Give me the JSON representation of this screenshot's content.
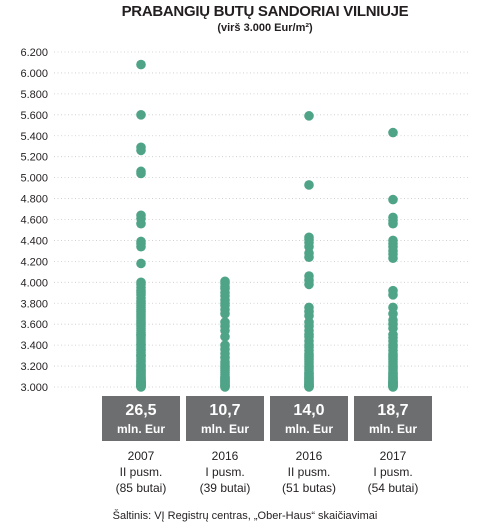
{
  "chart_data": {
    "type": "scatter",
    "title": "PRABANGIŲ BUTŲ SANDORIAI VILNIUJE",
    "subtitle": "(virš 3.000 Eur/m²)",
    "ylim": [
      3000,
      6200
    ],
    "grid": true,
    "point_color": "#4fa488",
    "box_color": "#6d6e70",
    "yticks": [
      {
        "value": 6200,
        "label": "6.200"
      },
      {
        "value": 6000,
        "label": "6.000"
      },
      {
        "value": 5800,
        "label": "5.800"
      },
      {
        "value": 5600,
        "label": "5.600"
      },
      {
        "value": 5400,
        "label": "5.400"
      },
      {
        "value": 5200,
        "label": "5.200"
      },
      {
        "value": 5000,
        "label": "5.000"
      },
      {
        "value": 4800,
        "label": "4.800"
      },
      {
        "value": 4600,
        "label": "4.600"
      },
      {
        "value": 4400,
        "label": "4.400"
      },
      {
        "value": 4200,
        "label": "4.200"
      },
      {
        "value": 4000,
        "label": "4.000"
      },
      {
        "value": 3800,
        "label": "3.800"
      },
      {
        "value": 3600,
        "label": "3.600"
      },
      {
        "value": 3400,
        "label": "3.400"
      },
      {
        "value": 3200,
        "label": "3.200"
      },
      {
        "value": 3000,
        "label": "3.000"
      }
    ],
    "categories": [
      {
        "year": "2007",
        "period": "II pusm.",
        "count": "(85 butai)",
        "total": "26,5",
        "total_unit": "mln. Eur",
        "prices": [
          6080,
          5600,
          5290,
          5260,
          5060,
          5040,
          4640,
          4610,
          4560,
          4390,
          4370,
          4340,
          4180,
          4000,
          3980,
          3950,
          3920,
          3900,
          3880,
          3850,
          3820,
          3800,
          3780,
          3760,
          3740,
          3720,
          3700,
          3680,
          3660,
          3640,
          3620,
          3600,
          3580,
          3560,
          3540,
          3520,
          3500,
          3490,
          3470,
          3450,
          3430,
          3410,
          3400,
          3380,
          3360,
          3350,
          3330,
          3310,
          3300,
          3290,
          3270,
          3250,
          3240,
          3220,
          3210,
          3200,
          3190,
          3170,
          3160,
          3150,
          3140,
          3130,
          3120,
          3110,
          3100,
          3090,
          3080,
          3070,
          3060,
          3055,
          3050,
          3045,
          3040,
          3035,
          3030,
          3025,
          3020,
          3015,
          3012,
          3010,
          3008,
          3006,
          3004,
          3002,
          3000
        ]
      },
      {
        "year": "2016",
        "period": "I pusm.",
        "count": "(39 butai)",
        "total": "10,7",
        "total_unit": "mln. Eur",
        "prices": [
          4010,
          3990,
          3960,
          3940,
          3900,
          3870,
          3830,
          3800,
          3780,
          3740,
          3700,
          3620,
          3580,
          3540,
          3480,
          3400,
          3360,
          3320,
          3280,
          3240,
          3220,
          3200,
          3180,
          3160,
          3140,
          3120,
          3100,
          3090,
          3080,
          3070,
          3060,
          3050,
          3040,
          3030,
          3020,
          3015,
          3010,
          3005,
          3000
        ]
      },
      {
        "year": "2016",
        "period": "II pusm.",
        "count": "(51 butas)",
        "total": "14,0",
        "total_unit": "mln. Eur",
        "prices": [
          5590,
          4930,
          4430,
          4410,
          4380,
          4340,
          4280,
          4240,
          4060,
          4020,
          3980,
          3760,
          3720,
          3680,
          3620,
          3580,
          3540,
          3500,
          3480,
          3440,
          3400,
          3380,
          3350,
          3320,
          3300,
          3280,
          3260,
          3240,
          3220,
          3200,
          3180,
          3160,
          3140,
          3130,
          3120,
          3110,
          3100,
          3090,
          3080,
          3070,
          3060,
          3050,
          3040,
          3030,
          3025,
          3020,
          3015,
          3010,
          3005,
          3002,
          3000
        ]
      },
      {
        "year": "2017",
        "period": "I pusm.",
        "count": "(54 butai)",
        "total": "18,7",
        "total_unit": "mln. Eur",
        "prices": [
          5430,
          4790,
          4620,
          4590,
          4560,
          4400,
          4370,
          4340,
          4300,
          4270,
          4230,
          3920,
          3880,
          3760,
          3700,
          3640,
          3600,
          3560,
          3500,
          3470,
          3440,
          3400,
          3380,
          3350,
          3320,
          3300,
          3280,
          3260,
          3240,
          3220,
          3200,
          3180,
          3160,
          3140,
          3130,
          3120,
          3110,
          3100,
          3090,
          3080,
          3070,
          3060,
          3050,
          3045,
          3040,
          3035,
          3030,
          3025,
          3020,
          3015,
          3010,
          3006,
          3003,
          3000
        ]
      }
    ],
    "source": "Šaltinis: VĮ Registrų centras, „Ober-Haus“ skaičiavimai"
  }
}
